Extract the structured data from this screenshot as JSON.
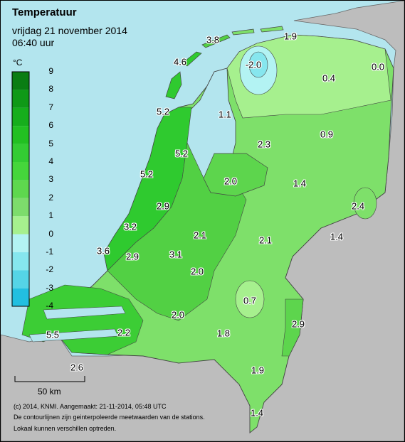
{
  "title": "Temperatuur",
  "date_line": "vrijdag 21 november 2014",
  "time_line": "06:40 uur",
  "legend": {
    "unit": "°C",
    "ticks": [
      "9",
      "8",
      "7",
      "6",
      "5",
      "4",
      "3",
      "2",
      "1",
      "0",
      "-1",
      "-2",
      "-3",
      "-4"
    ],
    "band_colors": [
      "#0a7d13",
      "#0f9917",
      "#16ae1c",
      "#22c022",
      "#33cc33",
      "#45d63b",
      "#5ed84e",
      "#7ddc6c",
      "#a6f08e",
      "#b3f3f3",
      "#86e6ee",
      "#55d4e6",
      "#22bfe0"
    ]
  },
  "stations": [
    {
      "value": "3.8"
    },
    {
      "value": "1.9"
    },
    {
      "value": "4.6"
    },
    {
      "value": "-2.0"
    },
    {
      "value": "0.0"
    },
    {
      "value": "0.4"
    },
    {
      "value": "5.2"
    },
    {
      "value": "1.1"
    },
    {
      "value": "0.9"
    },
    {
      "value": "5.2"
    },
    {
      "value": "2.3"
    },
    {
      "value": "5.2"
    },
    {
      "value": "2.0"
    },
    {
      "value": "1.4"
    },
    {
      "value": "2.9"
    },
    {
      "value": "2.4"
    },
    {
      "value": "3.2"
    },
    {
      "value": "2.1"
    },
    {
      "value": "2.1"
    },
    {
      "value": "1.4"
    },
    {
      "value": "3.6"
    },
    {
      "value": "2.9"
    },
    {
      "value": "3.1"
    },
    {
      "value": "2.0"
    },
    {
      "value": "0.7"
    },
    {
      "value": "2.0"
    },
    {
      "value": "2.9"
    },
    {
      "value": "5.5"
    },
    {
      "value": "2.2"
    },
    {
      "value": "1.8"
    },
    {
      "value": "2.6"
    },
    {
      "value": "1.9"
    },
    {
      "value": "1.4"
    }
  ],
  "scale_bar": "50 km",
  "credits": [
    "(c) 2014, KNMI. Aangemaakt: 21-11-2014, 05:48 UTC",
    "De contourlijnen zijn geinterpoleerde meetwaarden van de stations.",
    "Lokaal kunnen verschillen optreden."
  ]
}
